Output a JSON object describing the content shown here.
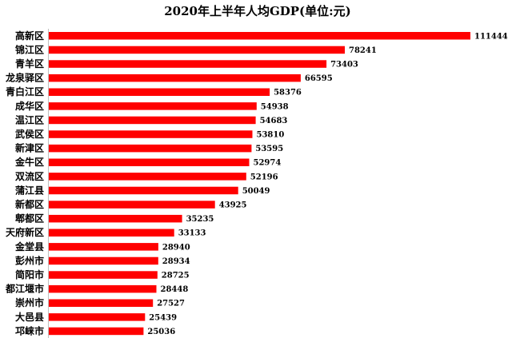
{
  "chart_data": {
    "type": "bar",
    "orientation": "horizontal",
    "title": "2020年上半年人均GDP(单位:元)",
    "categories": [
      "高新区",
      "锦江区",
      "青羊区",
      "龙泉驿区",
      "青白江区",
      "成华区",
      "温江区",
      "武侯区",
      "新津区",
      "金牛区",
      "双流区",
      "蒲江县",
      "新都区",
      "郫都区",
      "天府新区",
      "金堂县",
      "彭州市",
      "简阳市",
      "都江堰市",
      "崇州市",
      "大邑县",
      "邛崃市"
    ],
    "values": [
      111444,
      78241,
      73403,
      66595,
      58376,
      54938,
      54683,
      53810,
      53595,
      52974,
      52196,
      50049,
      43925,
      35235,
      33133,
      28940,
      28934,
      28725,
      28448,
      27527,
      25439,
      25036
    ],
    "xlim": [
      0,
      111444
    ],
    "grid": false,
    "legend": "none",
    "bar_color": "#ff0000"
  }
}
